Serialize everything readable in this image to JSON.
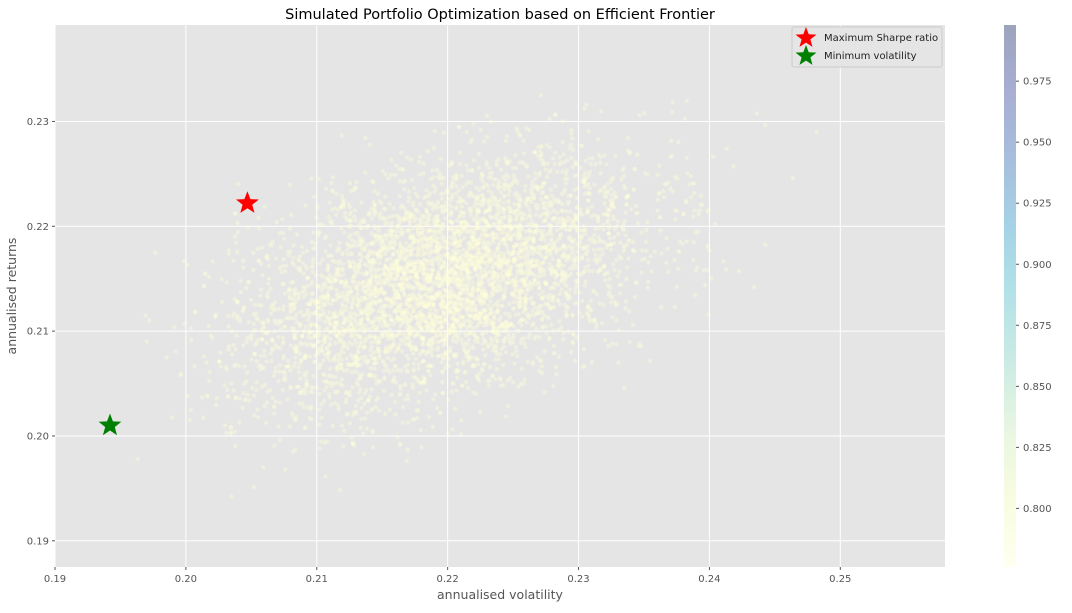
{
  "chart_data": {
    "type": "scatter",
    "title": "Simulated Portfolio Optimization based on Efficient Frontier",
    "xlabel": "annualised volatility",
    "ylabel": "annualised returns",
    "xlim": [
      0.19,
      0.258
    ],
    "ylim": [
      0.1875,
      0.2392
    ],
    "xticks": [
      0.19,
      0.2,
      0.21,
      0.22,
      0.23,
      0.24,
      0.25
    ],
    "xtick_labels": [
      "0.19",
      "0.20",
      "0.21",
      "0.22",
      "0.23",
      "0.24",
      "0.25"
    ],
    "yticks": [
      0.19,
      0.2,
      0.21,
      0.22,
      0.23
    ],
    "ytick_labels": [
      "0.19",
      "0.20",
      "0.21",
      "0.22",
      "0.23"
    ],
    "grid": true,
    "legend_position": "top-right",
    "legend": [
      {
        "label": "Maximum Sharpe ratio",
        "marker": "star",
        "color": "#ff0000"
      },
      {
        "label": "Minimum volatility",
        "marker": "star",
        "color": "#008000"
      }
    ],
    "highlights": [
      {
        "label": "Maximum Sharpe ratio",
        "x": 0.2047,
        "y": 0.2222,
        "color": "#ff0000"
      },
      {
        "label": "Minimum volatility",
        "x": 0.1942,
        "y": 0.201,
        "color": "#008000"
      }
    ],
    "colorbar": {
      "colormap": "YlGnBu",
      "range": [
        0.776,
        0.998
      ],
      "ticks": [
        0.8,
        0.825,
        0.85,
        0.875,
        0.9,
        0.925,
        0.95,
        0.975
      ],
      "tick_labels": [
        "0.800",
        "0.825",
        "0.850",
        "0.875",
        "0.900",
        "0.925",
        "0.950",
        "0.975"
      ]
    },
    "point_cloud": {
      "count": 5000,
      "center_x": 0.2195,
      "center_y": 0.2148,
      "sd_x": 0.0075,
      "sd_y": 0.0058,
      "corr": 0.45,
      "sharpe_range": [
        0.776,
        0.998
      ]
    }
  }
}
